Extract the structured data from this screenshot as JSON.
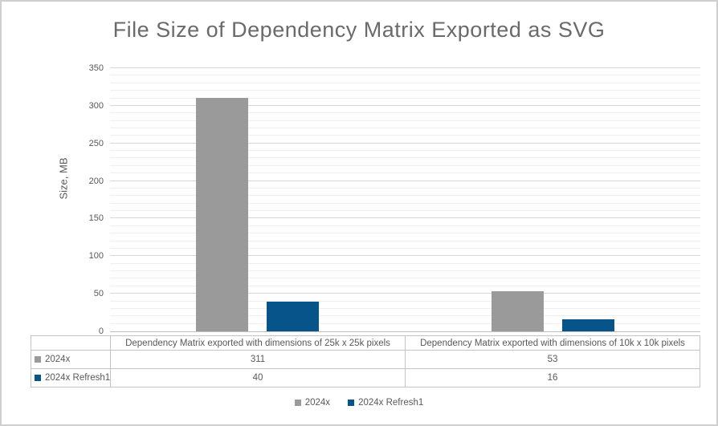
{
  "frame": {
    "background": "#ffffff",
    "border_color": "#cfcfcf"
  },
  "chart_data": {
    "type": "bar",
    "title": "File Size of Dependency Matrix Exported as SVG",
    "xlabel": "",
    "ylabel": "Size, MB",
    "ylim": [
      0,
      350
    ],
    "y_ticks": [
      0,
      50,
      100,
      150,
      200,
      250,
      300,
      350
    ],
    "y_tick_step": 50,
    "y_minor_gridline_step": 10,
    "grid": true,
    "legend_position": "bottom",
    "data_table_shown": true,
    "categories": [
      "Dependency Matrix exported with dimensions of 25k x 25k pixels",
      "Dependency Matrix exported with dimensions of 10k x 10k pixels"
    ],
    "series": [
      {
        "name": "2024x",
        "color": "#9a9a9a",
        "values": [
          311,
          53
        ]
      },
      {
        "name": "2024x Refresh1",
        "color": "#07548a",
        "values": [
          40,
          16
        ]
      }
    ]
  },
  "colors": {
    "title_text": "#6a6a6a",
    "axis_text": "#595959",
    "major_gridline": "#d6d6d6",
    "minor_gridline": "#efefef",
    "axis_line": "#bfbfbf",
    "table_border": "#c4c4c4"
  }
}
